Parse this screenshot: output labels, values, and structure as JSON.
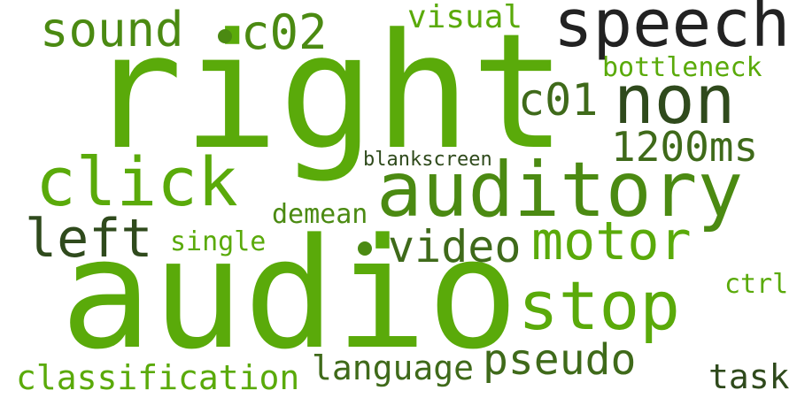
{
  "words": {
    "right": {
      "text": "right",
      "color": "#5aaa0a"
    },
    "audio": {
      "text": "audio",
      "color": "#5aaa0a"
    },
    "speech": {
      "text": "speech",
      "color": "#222222"
    },
    "auditory": {
      "text": "auditory",
      "color": "#4b8a12"
    },
    "non": {
      "text": "non",
      "color": "#2f4a1c"
    },
    "click": {
      "text": "click",
      "color": "#5aaa0a"
    },
    "stop": {
      "text": "stop",
      "color": "#5aaa0a"
    },
    "motor": {
      "text": "motor",
      "color": "#5aaa0a"
    },
    "sound": {
      "text": "sound",
      "color": "#4b8a12"
    },
    "c02": {
      "text": "c02",
      "color": "#4b8a12"
    },
    "left": {
      "text": "left",
      "color": "#2f4a1c"
    },
    "video": {
      "text": "video",
      "color": "#3f6a1a"
    },
    "pseudo": {
      "text": "pseudo",
      "color": "#3f6a1a"
    },
    "c01": {
      "text": "c01",
      "color": "#3f6a1a"
    },
    "ms1200": {
      "text": "1200ms",
      "color": "#3f6a1a"
    },
    "language": {
      "text": "language",
      "color": "#3f6a1a"
    },
    "classification": {
      "text": "classification",
      "color": "#5aaa0a"
    },
    "visual": {
      "text": "visual",
      "color": "#5aaa0a"
    },
    "bottleneck": {
      "text": "bottleneck",
      "color": "#5aaa0a"
    },
    "demean": {
      "text": "demean",
      "color": "#4b8a12"
    },
    "single": {
      "text": "single",
      "color": "#5aaa0a"
    },
    "task": {
      "text": "task",
      "color": "#2f4a1c"
    },
    "ctrl": {
      "text": "ctrl",
      "color": "#5aaa0a"
    },
    "blankscreen": {
      "text": "blankscreen",
      "color": "#2f4a1c"
    }
  },
  "dot_color": "#4b8a12"
}
